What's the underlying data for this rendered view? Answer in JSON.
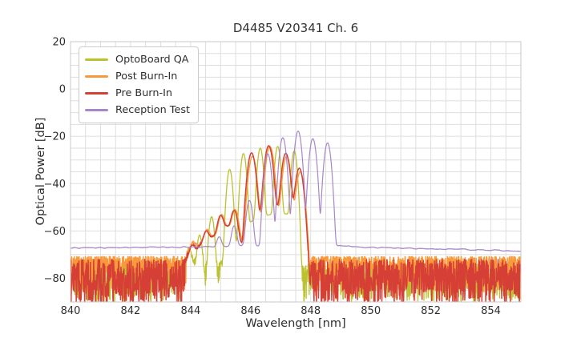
{
  "chart_data": {
    "type": "line",
    "title": "D4485 V20341 Ch. 6",
    "xlabel": "Wavelength [nm]",
    "ylabel": "Optical Power [dB]",
    "xlim": [
      840,
      855
    ],
    "ylim": [
      -90,
      20
    ],
    "xticks": [
      840,
      842,
      844,
      846,
      848,
      850,
      852,
      854
    ],
    "yticks": [
      20,
      0,
      -20,
      -40,
      -60,
      -80
    ],
    "grid": {
      "x_step": 0.5,
      "y_step": 5,
      "color": "#dedede",
      "frame_color": "#c9c9c9",
      "on": true
    },
    "legend": {
      "position": "upper left"
    },
    "series": [
      {
        "name": "OptoBoard QA",
        "color": "#bcc22e",
        "line_width": 1.3,
        "mode_sigma_nm": 0.052,
        "peaks_nm_db": [
          [
            843.95,
            -68
          ],
          [
            844.3,
            -62
          ],
          [
            844.7,
            -54
          ],
          [
            845.3,
            -34
          ],
          [
            845.76,
            -27.3
          ],
          [
            846.32,
            -25
          ],
          [
            846.9,
            -24.3
          ],
          [
            847.45,
            -26.2
          ]
        ],
        "valley_floor_db": [
          [
            843.75,
            -80
          ],
          [
            844.1,
            -74
          ],
          [
            844.55,
            -95
          ],
          [
            844.9,
            -84
          ],
          [
            845.15,
            -71
          ],
          [
            845.5,
            -66
          ],
          [
            845.9,
            -57
          ],
          [
            846.3,
            -54
          ],
          [
            846.9,
            -52.5
          ],
          [
            847.3,
            -53
          ],
          [
            847.55,
            -62
          ],
          [
            847.75,
            -92
          ]
        ],
        "noise_floor": {
          "top_db": -74,
          "depth_db": 16,
          "shape": 1.7,
          "seed": 3
        }
      },
      {
        "name": "Post Burn-In",
        "color": "#f8993b",
        "line_width": 1.4,
        "mode_sigma_nm": 0.072,
        "peaks_nm_db": [
          [
            844.08,
            -67.5
          ],
          [
            844.55,
            -61.5
          ],
          [
            845.03,
            -54
          ],
          [
            845.48,
            -51.5
          ],
          [
            846.06,
            -28.5
          ],
          [
            846.64,
            -24.3
          ],
          [
            847.2,
            -28.5
          ],
          [
            847.65,
            -35
          ]
        ],
        "valley_floor_db": [
          [
            843.85,
            -73
          ],
          [
            844.4,
            -65
          ],
          [
            844.85,
            -62
          ],
          [
            845.25,
            -58
          ],
          [
            845.55,
            -61
          ],
          [
            845.85,
            -68
          ],
          [
            846.15,
            -55
          ],
          [
            846.5,
            -51.5
          ],
          [
            847.05,
            -50
          ],
          [
            847.4,
            -48
          ],
          [
            847.75,
            -62
          ],
          [
            848.0,
            -82
          ]
        ],
        "noise_floor": {
          "top_db": -70.8,
          "depth_db": 15,
          "shape": 2.0,
          "seed": 5
        }
      },
      {
        "name": "Pre Burn-In",
        "color": "#d63f35",
        "line_width": 1.5,
        "mode_sigma_nm": 0.072,
        "peaks_nm_db": [
          [
            844.05,
            -68
          ],
          [
            844.52,
            -62
          ],
          [
            845.0,
            -54.5
          ],
          [
            845.45,
            -52
          ],
          [
            846.03,
            -27
          ],
          [
            846.6,
            -24
          ],
          [
            847.17,
            -27.2
          ],
          [
            847.62,
            -33.5
          ]
        ],
        "valley_floor_db": [
          [
            843.8,
            -74
          ],
          [
            844.35,
            -66
          ],
          [
            844.8,
            -62
          ],
          [
            845.2,
            -58
          ],
          [
            845.5,
            -60
          ],
          [
            845.82,
            -70
          ],
          [
            846.1,
            -55
          ],
          [
            846.45,
            -51
          ],
          [
            847.0,
            -49.5
          ],
          [
            847.35,
            -47
          ],
          [
            847.7,
            -60
          ],
          [
            847.95,
            -82
          ]
        ],
        "noise_floor": {
          "top_db": -72,
          "depth_db": 19,
          "shape": 1.25,
          "seed": 7
        }
      },
      {
        "name": "Reception Test",
        "color": "#a886c8",
        "line_width": 1.2,
        "mode_sigma_nm": 0.062,
        "peaks_nm_db": [
          [
            844.95,
            -64.5
          ],
          [
            845.45,
            -58.5
          ],
          [
            845.96,
            -47.2
          ],
          [
            846.57,
            -27.4
          ],
          [
            847.07,
            -20.6
          ],
          [
            847.58,
            -17.8
          ],
          [
            848.07,
            -21
          ],
          [
            848.56,
            -22.8
          ]
        ],
        "valley_floor_db": [
          [
            840,
            -67.2
          ],
          [
            841.5,
            -67.1
          ],
          [
            843,
            -66.9
          ],
          [
            844.5,
            -66.7
          ],
          [
            845.3,
            -66.5
          ],
          [
            846,
            -66.3
          ],
          [
            848.9,
            -66.2
          ],
          [
            849.5,
            -66.9
          ],
          [
            851,
            -67.3
          ],
          [
            853,
            -67.8
          ],
          [
            855,
            -68.4
          ]
        ],
        "noise_jitter": {
          "amp_coarse_db": 0.55,
          "scale_nm": 0.14,
          "amp_fine_db": 0.18,
          "seed": 9
        }
      }
    ]
  }
}
